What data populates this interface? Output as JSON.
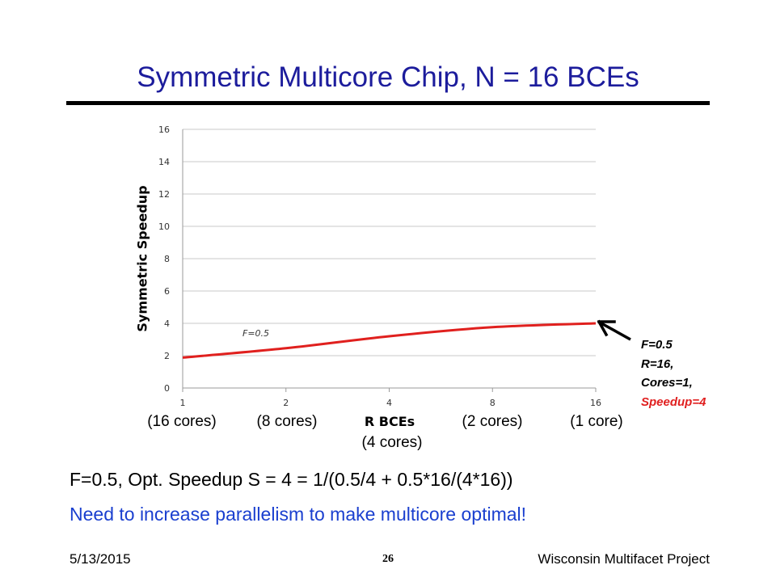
{
  "slide": {
    "title": "Symmetric Multicore Chip, N = 16 BCEs",
    "formula": "F=0.5, Opt. Speedup S = 4 = 1/(0.5/4 + 0.5*16/(4*16))",
    "conclusion": "Need to increase parallelism to make multicore optimal!",
    "footer": {
      "date": "5/13/2015",
      "page": "26",
      "project": "Wisconsin Multifacet Project"
    }
  },
  "callout": {
    "lines": [
      "F=0.5",
      "R=16,",
      "Cores=1,"
    ],
    "speedup": "Speedup=4"
  },
  "core_labels": [
    "(16 cores)",
    "(8 cores)",
    "(4 cores)",
    "(2 cores)",
    "(1 core)"
  ],
  "colors": {
    "title": "#1c1c9c",
    "conclusion": "#1a3fcf",
    "series": "#e0201e",
    "grid": "#c8c8c8"
  },
  "chart_data": {
    "type": "line",
    "xlabel": "R BCEs",
    "ylabel": "Symmetric Speedup",
    "x": [
      1,
      2,
      4,
      8,
      16
    ],
    "x_scale": "log2",
    "ylim": [
      0,
      16
    ],
    "yticks": [
      0,
      2,
      4,
      6,
      8,
      10,
      12,
      14,
      16
    ],
    "grid": true,
    "series": [
      {
        "name": "F=0.5",
        "x": [
          1,
          2,
          4,
          8,
          16
        ],
        "values": [
          1.88,
          2.46,
          3.2,
          3.76,
          4.0
        ]
      }
    ]
  }
}
